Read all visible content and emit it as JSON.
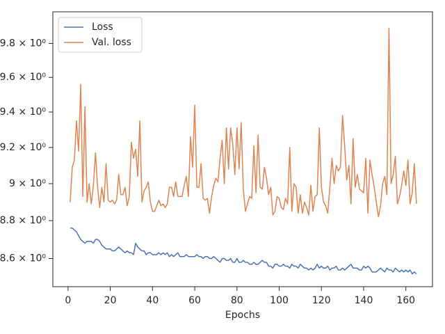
{
  "chart_data": {
    "type": "line",
    "xlabel": "Epochs",
    "yscale": "log",
    "legend": "upper left",
    "x": [
      1,
      2,
      3,
      4,
      5,
      6,
      7,
      8,
      9,
      10,
      11,
      12,
      13,
      14,
      15,
      16,
      17,
      18,
      19,
      20,
      21,
      22,
      23,
      24,
      25,
      26,
      27,
      28,
      29,
      30,
      31,
      32,
      33,
      34,
      35,
      36,
      37,
      38,
      39,
      40,
      41,
      42,
      43,
      44,
      45,
      46,
      47,
      48,
      49,
      50,
      51,
      52,
      53,
      54,
      55,
      56,
      57,
      58,
      59,
      60,
      61,
      62,
      63,
      64,
      65,
      66,
      67,
      68,
      69,
      70,
      71,
      72,
      73,
      74,
      75,
      76,
      77,
      78,
      79,
      80,
      81,
      82,
      83,
      84,
      85,
      86,
      87,
      88,
      89,
      90,
      91,
      92,
      93,
      94,
      95,
      96,
      97,
      98,
      99,
      100,
      101,
      102,
      103,
      104,
      105,
      106,
      107,
      108,
      109,
      110,
      111,
      112,
      113,
      114,
      115,
      116,
      117,
      118,
      119,
      120,
      121,
      122,
      123,
      124,
      125,
      126,
      127,
      128,
      129,
      130,
      131,
      132,
      133,
      134,
      135,
      136,
      137,
      138,
      139,
      140,
      141,
      142,
      143,
      144,
      145,
      146,
      147,
      148,
      149,
      150,
      151,
      152,
      153,
      154,
      155,
      156,
      157,
      158,
      159,
      160,
      161,
      162,
      163,
      164,
      165
    ],
    "series": [
      {
        "name": "Loss",
        "color": "#4c72b0",
        "values": [
          8.76,
          8.76,
          8.75,
          8.74,
          8.72,
          8.7,
          8.69,
          8.68,
          8.69,
          8.69,
          8.69,
          8.68,
          8.7,
          8.7,
          8.69,
          8.67,
          8.66,
          8.65,
          8.65,
          8.65,
          8.64,
          8.64,
          8.65,
          8.66,
          8.65,
          8.64,
          8.63,
          8.64,
          8.63,
          8.63,
          8.62,
          8.68,
          8.66,
          8.65,
          8.64,
          8.64,
          8.62,
          8.63,
          8.63,
          8.62,
          8.62,
          8.62,
          8.63,
          8.62,
          8.63,
          8.62,
          8.63,
          8.61,
          8.62,
          8.61,
          8.62,
          8.63,
          8.61,
          8.61,
          8.61,
          8.62,
          8.61,
          8.61,
          8.61,
          8.61,
          8.62,
          8.61,
          8.61,
          8.6,
          8.61,
          8.61,
          8.6,
          8.6,
          8.61,
          8.6,
          8.59,
          8.58,
          8.6,
          8.6,
          8.59,
          8.59,
          8.6,
          8.58,
          8.58,
          8.6,
          8.58,
          8.58,
          8.59,
          8.58,
          8.58,
          8.57,
          8.57,
          8.58,
          8.57,
          8.57,
          8.58,
          8.59,
          8.58,
          8.58,
          8.56,
          8.56,
          8.55,
          8.57,
          8.57,
          8.56,
          8.56,
          8.57,
          8.56,
          8.56,
          8.55,
          8.57,
          8.56,
          8.56,
          8.55,
          8.57,
          8.56,
          8.55,
          8.55,
          8.54,
          8.55,
          8.54,
          8.55,
          8.57,
          8.55,
          8.56,
          8.55,
          8.55,
          8.56,
          8.54,
          8.55,
          8.55,
          8.56,
          8.54,
          8.54,
          8.55,
          8.54,
          8.55,
          8.56,
          8.57,
          8.55,
          8.55,
          8.55,
          8.54,
          8.54,
          8.56,
          8.55,
          8.56,
          8.55,
          8.53,
          8.53,
          8.53,
          8.54,
          8.55,
          8.54,
          8.53,
          8.55,
          8.54,
          8.54,
          8.53,
          8.55,
          8.54,
          8.53,
          8.54,
          8.53,
          8.54,
          8.53,
          8.54,
          8.52,
          8.53,
          8.52
        ]
      },
      {
        "name": "Val. loss",
        "color": "#dd8452",
        "values": [
          8.9,
          9.09,
          9.13,
          9.35,
          9.18,
          9.56,
          8.93,
          9.43,
          8.9,
          9.0,
          8.89,
          8.99,
          9.17,
          8.98,
          8.87,
          8.98,
          8.9,
          9.11,
          8.91,
          8.9,
          8.91,
          8.89,
          8.91,
          9.05,
          8.94,
          8.94,
          8.98,
          8.88,
          8.93,
          9.23,
          9.14,
          9.19,
          9.04,
          9.35,
          8.9,
          8.96,
          8.98,
          9.01,
          8.9,
          8.85,
          8.85,
          8.88,
          8.91,
          8.88,
          8.89,
          8.87,
          8.89,
          8.98,
          8.98,
          8.93,
          9.01,
          8.93,
          8.93,
          8.93,
          8.99,
          9.04,
          8.93,
          9.26,
          9.09,
          9.44,
          8.98,
          8.98,
          9.11,
          8.92,
          8.91,
          8.92,
          8.84,
          8.93,
          8.99,
          9.03,
          9.01,
          9.14,
          9.24,
          9.0,
          9.31,
          9.08,
          9.31,
          9.22,
          9.05,
          9.31,
          9.08,
          9.34,
          8.97,
          8.85,
          8.89,
          8.93,
          8.92,
          9.21,
          8.95,
          9.27,
          8.98,
          8.97,
          9.09,
          9.03,
          8.94,
          8.98,
          8.83,
          8.85,
          8.93,
          8.92,
          8.87,
          8.86,
          8.92,
          8.89,
          9.2,
          8.85,
          9.0,
          8.98,
          8.84,
          8.94,
          8.84,
          8.9,
          8.87,
          8.83,
          8.99,
          8.85,
          8.93,
          8.94,
          9.31,
          8.98,
          8.9,
          8.88,
          8.84,
          8.98,
          9.14,
          9.0,
          9.1,
          9.07,
          9.09,
          9.38,
          9.21,
          9.02,
          9.1,
          8.89,
          9.25,
          8.98,
          9.05,
          8.97,
          8.96,
          8.95,
          9.14,
          8.84,
          9.13,
          9.05,
          8.98,
          8.9,
          8.82,
          8.88,
          9.0,
          9.04,
          8.94,
          9.89,
          9.0,
          9.05,
          9.15,
          8.89,
          8.93,
          8.99,
          9.07,
          8.99,
          9.13,
          8.89,
          8.95,
          9.11,
          8.89
        ]
      }
    ],
    "xlim": [
      -7.2,
      172.6
    ],
    "xticks": [
      0,
      20,
      40,
      60,
      80,
      100,
      120,
      140,
      160
    ],
    "ylim": [
      8.454,
      9.99
    ],
    "yticks": [
      {
        "value": 8.6,
        "label": "8.6 × 10⁰"
      },
      {
        "value": 8.8,
        "label": "8.8 × 10⁰"
      },
      {
        "value": 9,
        "label": "9 × 10⁰"
      },
      {
        "value": 9.2,
        "label": "9.2 × 10⁰"
      },
      {
        "value": 9.4,
        "label": "9.4 × 10⁰"
      },
      {
        "value": 9.6,
        "label": "9.6 × 10⁰"
      },
      {
        "value": 9.8,
        "label": "9.8 × 10⁰"
      }
    ]
  }
}
